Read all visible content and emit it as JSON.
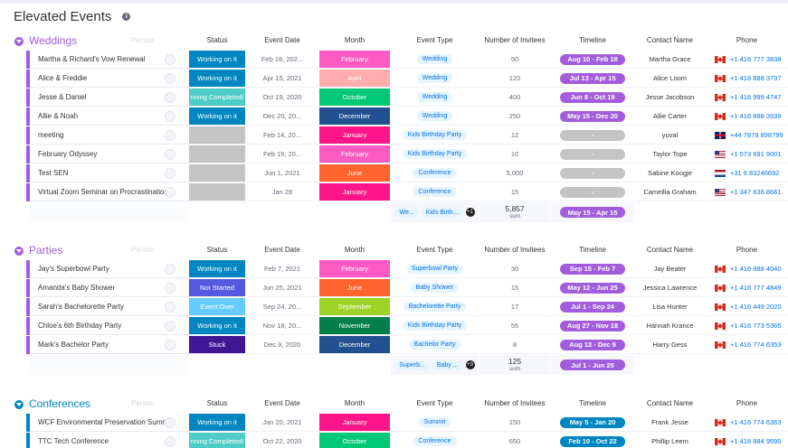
{
  "page": {
    "title": "Elevated Events"
  },
  "columns": {
    "ghost": "Person",
    "status": "Status",
    "date": "Event Date",
    "month": "Month",
    "type": "Event Type",
    "invitees": "Number of Invitees",
    "timeline": "Timeline",
    "contact": "Contact Name",
    "phone": "Phone"
  },
  "groups": [
    {
      "name": "Weddings",
      "color": "#a25ddc",
      "rows": [
        {
          "name": "Martha & Richard's Vow Renewal",
          "status": "Working on it",
          "status_color": "#0086c0",
          "date": "Feb 18, 202...",
          "month": "February",
          "month_color": "#ff5ac4",
          "type": "Wedding",
          "invitees": "50",
          "timeline": "Aug 10 - Feb 18",
          "contact": "Martha Grace",
          "flag": "ca",
          "phone": "+1 416 777 3838"
        },
        {
          "name": "Alice & Freddie",
          "status": "Working on it",
          "status_color": "#0086c0",
          "date": "Apr 15, 2021",
          "month": "April",
          "month_color": "#ffadad",
          "type": "Wedding",
          "invitees": "120",
          "timeline": "Jul 13 - Apr 15",
          "contact": "Alice Loom",
          "flag": "ca",
          "phone": "+1 416 888 3737"
        },
        {
          "name": "Jesse & Daniel",
          "status": "nning Completed!",
          "status_color": "#4eccc6",
          "date": "Oct 19, 2020",
          "month": "October",
          "month_color": "#00c875",
          "type": "Wedding",
          "invitees": "400",
          "timeline": "Jun 8 - Oct 19",
          "contact": "Jesse Jacobson",
          "flag": "ca",
          "phone": "+1 416 999 4747"
        },
        {
          "name": "Allie & Noah",
          "status": "Working on it",
          "status_color": "#0086c0",
          "date": "Dec 20, 20...",
          "month": "December",
          "month_color": "#225091",
          "type": "Wedding",
          "invitees": "250",
          "timeline": "May 15 - Dec 20",
          "contact": "Allie Carter",
          "flag": "ca",
          "phone": "+1 416 888 3939"
        },
        {
          "name": "meeting",
          "status": "",
          "status_color": "#c4c4c4",
          "date": "Feb 14, 20...",
          "month": "January",
          "month_color": "#ff158a",
          "type": "Kids Birthday Party",
          "invitees": "12",
          "timeline": "-",
          "timeline_empty": true,
          "contact": "yuval",
          "flag": "gb",
          "phone": "+44 7878 898799"
        },
        {
          "name": "February Odyssey",
          "status": "",
          "status_color": "#c4c4c4",
          "date": "Feb 19, 20...",
          "month": "February",
          "month_color": "#ff5ac4",
          "type": "Kids Birthday Party",
          "invitees": "10",
          "timeline": "-",
          "timeline_empty": true,
          "contact": "Taylor Tope",
          "flag": "us",
          "phone": "+1 573 691 9001"
        },
        {
          "name": "Test SEN",
          "status": "",
          "status_color": "#c4c4c4",
          "date": "Jun 1, 2021",
          "month": "June",
          "month_color": "#ff642e",
          "type": "Conference",
          "invitees": "5,000",
          "timeline": "-",
          "timeline_empty": true,
          "contact": "Sabine Koogje",
          "flag": "nl",
          "phone": "+31 6 83246692"
        },
        {
          "name": "Virtual Zoom Seminar on Procrastination",
          "status": "",
          "status_color": "#c4c4c4",
          "date": "Jan 28",
          "month": "January",
          "month_color": "#ff158a",
          "type": "Conference",
          "invitees": "15",
          "timeline": "-",
          "timeline_empty": true,
          "contact": "Camellia Graham",
          "flag": "us",
          "phone": "+1 347 636 8661"
        }
      ],
      "summary": {
        "types": [
          "We...",
          "Kids Birth..."
        ],
        "more": "+1",
        "invitees": "5,857",
        "label": "sum",
        "timeline": "May 15 - Apr 15"
      }
    },
    {
      "name": "Parties",
      "color": "#a25ddc",
      "rows": [
        {
          "name": "Jay's Superbowl Party",
          "status": "Working on it",
          "status_color": "#0086c0",
          "date": "Feb 7, 2021",
          "month": "February",
          "month_color": "#ff5ac4",
          "type": "Superbowl Party",
          "invitees": "30",
          "timeline": "Sep 15 - Feb 7",
          "contact": "Jay Beater",
          "flag": "ca",
          "phone": "+1 416 888 4040"
        },
        {
          "name": "Amanda's Baby Shower",
          "status": "Not Started",
          "status_color": "#5559df",
          "date": "Jun 25, 2021",
          "month": "June",
          "month_color": "#ff642e",
          "type": "Baby Shower",
          "invitees": "15",
          "timeline": "May 12 - Jun 25",
          "contact": "Jessica Lawrence",
          "flag": "ca",
          "phone": "+1 416 777 4849"
        },
        {
          "name": "Sarah's Bachelorette Party",
          "status": "Event Over",
          "status_color": "#66ccff",
          "date": "Sep 24, 20...",
          "month": "September",
          "month_color": "#9cd326",
          "type": "Bachelorette Party",
          "invitees": "17",
          "timeline": "Jul 1 - Sep 24",
          "contact": "Lisa Hunter",
          "flag": "ca",
          "phone": "+1 416 449 2020"
        },
        {
          "name": "Chloe's 6th Birthday Party",
          "status": "Working on it",
          "status_color": "#0086c0",
          "date": "Nov 18, 20...",
          "month": "November",
          "month_color": "#037f4c",
          "type": "Kids Birthday Party",
          "invitees": "55",
          "timeline": "Aug 27 - Nov 18",
          "contact": "Hannah Krance",
          "flag": "ca",
          "phone": "+1 416 773 5365"
        },
        {
          "name": "Mark's Bachelor Party",
          "status": "Stuck",
          "status_color": "#401694",
          "date": "Dec 9, 2020",
          "month": "December",
          "month_color": "#225091",
          "type": "Bachelor Party",
          "invitees": "8",
          "timeline": "Aug 12 - Dec 9",
          "contact": "Harry Gess",
          "flag": "ca",
          "phone": "+1 416 774 6353"
        }
      ],
      "summary": {
        "types": [
          "Superb...",
          "Baby ..."
        ],
        "more": "+3",
        "invitees": "125",
        "label": "sum",
        "timeline": "Jul 1 - Jun 25"
      }
    },
    {
      "name": "Conferences",
      "color": "#0086c0",
      "rows": [
        {
          "name": "WCF Environmental Preservation Summit",
          "status": "Working on it",
          "status_color": "#0086c0",
          "date": "Jan 20, 2021",
          "month": "January",
          "month_color": "#ff158a",
          "type": "Summit",
          "invitees": "150",
          "timeline": "May 5 - Jan 20",
          "contact": "Frank Jesse",
          "flag": "ca",
          "phone": "+1 416 774 6363"
        },
        {
          "name": "TTC Tech Conference",
          "status": "nning Completed!",
          "status_color": "#4eccc6",
          "date": "Oct 22, 2020",
          "month": "October",
          "month_color": "#00c875",
          "type": "Conference",
          "invitees": "650",
          "timeline": "Feb 10 - Oct 22",
          "contact": "Phillip Leem",
          "flag": "ca",
          "phone": "+1 416 884 9595"
        }
      ]
    }
  ]
}
